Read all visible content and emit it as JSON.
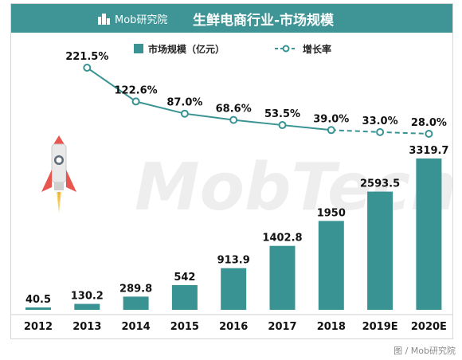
{
  "header": {
    "brand": "Mob研究院",
    "title": "生鲜电商行业-市场规模"
  },
  "watermark": "MobTech",
  "legend": {
    "bars_label": "市场规模（亿元）",
    "line_label": "增长率"
  },
  "colors": {
    "header": "#3f9596",
    "bar": "#3a9393",
    "line": "#3a9393"
  },
  "chart_data": {
    "type": "bar",
    "categories": [
      "2012",
      "2013",
      "2014",
      "2015",
      "2016",
      "2017",
      "2018",
      "2019E",
      "2020E"
    ],
    "series": [
      {
        "name": "市场规模（亿元）",
        "type": "bar",
        "values": [
          40.5,
          130.2,
          289.8,
          542,
          913.9,
          1402.8,
          1950,
          2593.5,
          3319.7
        ],
        "labels": [
          "40.5",
          "130.2",
          "289.8",
          "542",
          "913.9",
          "1402.8",
          "1950",
          "2593.5",
          "3319.7"
        ]
      },
      {
        "name": "增长率",
        "type": "line",
        "x": [
          "2013",
          "2014",
          "2015",
          "2016",
          "2017",
          "2018",
          "2019E",
          "2020E"
        ],
        "values": [
          221.5,
          122.6,
          87.0,
          68.6,
          53.5,
          39.0,
          33.0,
          28.0
        ],
        "labels": [
          "221.5%",
          "122.6%",
          "87.0%",
          "68.6%",
          "53.5%",
          "39.0%",
          "33.0%",
          "28.0%"
        ],
        "dashed_from": "2018"
      }
    ],
    "xlabel": "",
    "ylabel": "",
    "legend_position": "top"
  },
  "source": "图 / Mob研究院"
}
